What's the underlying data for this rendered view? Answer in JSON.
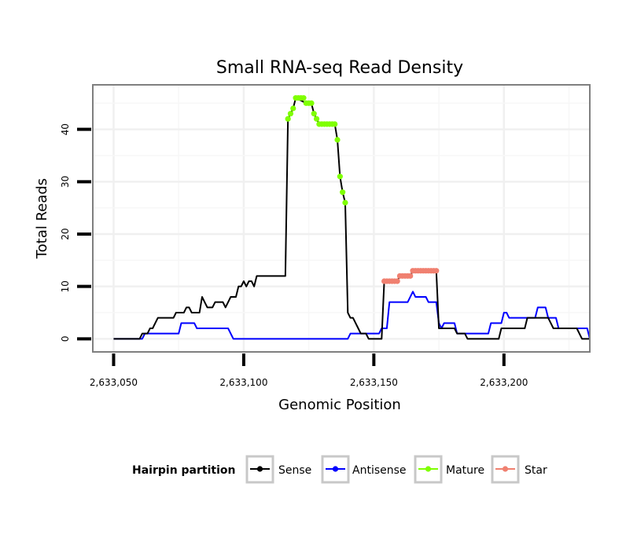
{
  "chart_data": {
    "type": "line",
    "title": "Small RNA-seq Read Density",
    "xlabel": "Genomic Position",
    "ylabel": "Total Reads",
    "xlim": [
      2633042,
      2633233
    ],
    "ylim": [
      -2.5,
      48.5
    ],
    "x_ticks": [
      2633050,
      2633100,
      2633150,
      2633200
    ],
    "x_tick_labels": [
      "2,633,050",
      "2,633,100",
      "2,633,150",
      "2,633,200"
    ],
    "y_ticks": [
      0,
      10,
      20,
      30,
      40
    ],
    "y_tick_labels": [
      "0",
      "10",
      "20",
      "30",
      "40"
    ],
    "grid": true,
    "legend": {
      "title": "Hairpin partition",
      "placement": "bottom",
      "entries": [
        "Sense",
        "Antisense",
        "Mature",
        "Star"
      ]
    },
    "series": [
      {
        "name": "Sense",
        "color": "#000000",
        "style": "line",
        "points": [
          [
            2633050,
            0
          ],
          [
            2633060,
            0
          ],
          [
            2633061,
            1
          ],
          [
            2633063,
            1
          ],
          [
            2633064,
            2
          ],
          [
            2633065,
            2
          ],
          [
            2633066,
            3
          ],
          [
            2633067,
            4
          ],
          [
            2633073,
            4
          ],
          [
            2633074,
            5
          ],
          [
            2633077,
            5
          ],
          [
            2633078,
            6
          ],
          [
            2633079,
            6
          ],
          [
            2633080,
            5
          ],
          [
            2633083,
            5
          ],
          [
            2633084,
            8
          ],
          [
            2633085,
            7
          ],
          [
            2633086,
            6
          ],
          [
            2633088,
            6
          ],
          [
            2633089,
            7
          ],
          [
            2633092,
            7
          ],
          [
            2633093,
            6
          ],
          [
            2633094,
            7
          ],
          [
            2633095,
            8
          ],
          [
            2633097,
            8
          ],
          [
            2633098,
            10
          ],
          [
            2633099,
            10
          ],
          [
            2633100,
            11
          ],
          [
            2633101,
            10
          ],
          [
            2633102,
            11
          ],
          [
            2633103,
            11
          ],
          [
            2633104,
            10
          ],
          [
            2633105,
            12
          ],
          [
            2633116,
            12
          ],
          [
            2633117,
            42
          ],
          [
            2633118,
            43
          ],
          [
            2633119,
            44
          ],
          [
            2633120,
            46
          ],
          [
            2633124,
            45
          ],
          [
            2633126,
            45
          ],
          [
            2633127,
            43
          ],
          [
            2633128,
            42
          ],
          [
            2633129,
            41
          ],
          [
            2633135,
            41
          ],
          [
            2633136,
            38
          ],
          [
            2633137,
            31
          ],
          [
            2633138,
            28
          ],
          [
            2633139,
            26
          ],
          [
            2633140,
            5
          ],
          [
            2633141,
            4
          ],
          [
            2633142,
            4
          ],
          [
            2633143,
            3
          ],
          [
            2633144,
            2
          ],
          [
            2633145,
            1
          ],
          [
            2633146,
            1
          ],
          [
            2633147,
            1
          ],
          [
            2633148,
            0
          ],
          [
            2633153,
            0
          ],
          [
            2633154,
            11
          ],
          [
            2633159,
            11
          ],
          [
            2633160,
            12
          ],
          [
            2633164,
            12
          ],
          [
            2633165,
            13
          ],
          [
            2633174,
            13
          ],
          [
            2633175,
            2
          ],
          [
            2633181,
            2
          ],
          [
            2633182,
            1
          ],
          [
            2633185,
            1
          ],
          [
            2633186,
            0
          ],
          [
            2633198,
            0
          ],
          [
            2633199,
            2
          ],
          [
            2633208,
            2
          ],
          [
            2633209,
            4
          ],
          [
            2633217,
            4
          ],
          [
            2633218,
            3
          ],
          [
            2633219,
            2
          ],
          [
            2633228,
            2
          ],
          [
            2633229,
            1
          ],
          [
            2633230,
            0
          ],
          [
            2633233,
            0
          ]
        ]
      },
      {
        "name": "Antisense",
        "color": "#0000ff",
        "style": "line",
        "points": [
          [
            2633050,
            0
          ],
          [
            2633061,
            0
          ],
          [
            2633062,
            1
          ],
          [
            2633075,
            1
          ],
          [
            2633076,
            3
          ],
          [
            2633081,
            3
          ],
          [
            2633082,
            2
          ],
          [
            2633094,
            2
          ],
          [
            2633096,
            0
          ],
          [
            2633140,
            0
          ],
          [
            2633141,
            1
          ],
          [
            2633152,
            1
          ],
          [
            2633153,
            2
          ],
          [
            2633155,
            2
          ],
          [
            2633156,
            7
          ],
          [
            2633163,
            7
          ],
          [
            2633165,
            9
          ],
          [
            2633166,
            8
          ],
          [
            2633170,
            8
          ],
          [
            2633171,
            7
          ],
          [
            2633174,
            7
          ],
          [
            2633175,
            3
          ],
          [
            2633176,
            2
          ],
          [
            2633177,
            3
          ],
          [
            2633181,
            3
          ],
          [
            2633182,
            1
          ],
          [
            2633194,
            1
          ],
          [
            2633195,
            3
          ],
          [
            2633199,
            3
          ],
          [
            2633200,
            5
          ],
          [
            2633201,
            5
          ],
          [
            2633202,
            4
          ],
          [
            2633212,
            4
          ],
          [
            2633213,
            6
          ],
          [
            2633216,
            6
          ],
          [
            2633217,
            4
          ],
          [
            2633220,
            4
          ],
          [
            2633221,
            2
          ],
          [
            2633232,
            2
          ],
          [
            2633233,
            0
          ]
        ]
      },
      {
        "name": "Mature",
        "color": "#7fff00",
        "style": "points",
        "points": [
          [
            2633117,
            42
          ],
          [
            2633118,
            43
          ],
          [
            2633119,
            44
          ],
          [
            2633120,
            46
          ],
          [
            2633121,
            46
          ],
          [
            2633122,
            46
          ],
          [
            2633123,
            46
          ],
          [
            2633124,
            45
          ],
          [
            2633125,
            45
          ],
          [
            2633126,
            45
          ],
          [
            2633127,
            43
          ],
          [
            2633128,
            42
          ],
          [
            2633129,
            41
          ],
          [
            2633130,
            41
          ],
          [
            2633131,
            41
          ],
          [
            2633132,
            41
          ],
          [
            2633133,
            41
          ],
          [
            2633134,
            41
          ],
          [
            2633135,
            41
          ],
          [
            2633136,
            38
          ],
          [
            2633137,
            31
          ],
          [
            2633138,
            28
          ],
          [
            2633139,
            26
          ]
        ]
      },
      {
        "name": "Star",
        "color": "#f08070",
        "style": "points",
        "points": [
          [
            2633154,
            11
          ],
          [
            2633155,
            11
          ],
          [
            2633156,
            11
          ],
          [
            2633157,
            11
          ],
          [
            2633158,
            11
          ],
          [
            2633159,
            11
          ],
          [
            2633160,
            12
          ],
          [
            2633161,
            12
          ],
          [
            2633162,
            12
          ],
          [
            2633163,
            12
          ],
          [
            2633164,
            12
          ],
          [
            2633165,
            13
          ],
          [
            2633166,
            13
          ],
          [
            2633167,
            13
          ],
          [
            2633168,
            13
          ],
          [
            2633169,
            13
          ],
          [
            2633170,
            13
          ],
          [
            2633171,
            13
          ],
          [
            2633172,
            13
          ],
          [
            2633173,
            13
          ],
          [
            2633174,
            13
          ]
        ]
      }
    ]
  }
}
